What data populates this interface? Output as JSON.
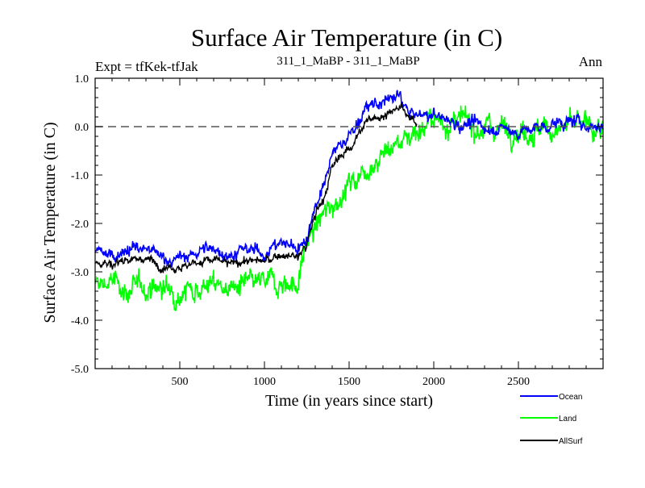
{
  "chart_data": {
    "type": "line",
    "title": "Surface Air Temperature (in C)",
    "subtitle_left": "Expt = tfKek-tfJak",
    "subtitle_center": "311_1_MaBP - 311_1_MaBP",
    "subtitle_right": "Ann",
    "xlabel": "Time (in years since start)",
    "ylabel": "Surface Air Temperature (in C)",
    "xlim": [
      0,
      3000
    ],
    "ylim": [
      -5.0,
      1.0
    ],
    "xticks": [
      500,
      1000,
      1500,
      2000,
      2500
    ],
    "xtick_labels": [
      "500",
      "1000",
      "1500",
      "2000",
      "2500"
    ],
    "yticks": [
      1.0,
      0.0,
      -1.0,
      -2.0,
      -3.0,
      -4.0,
      -5.0
    ],
    "ytick_labels": [
      "1.0",
      "0.0",
      "-1.0",
      "-2.0",
      "-3.0",
      "-4.0",
      "-5.0"
    ],
    "reference_line": {
      "y": 0.0,
      "style": "dashed"
    },
    "grid": false,
    "legend_position": "bottom-right",
    "series": [
      {
        "name": "Ocean",
        "color": "#0000ff",
        "x": [
          0,
          100,
          200,
          300,
          400,
          500,
          600,
          700,
          800,
          900,
          1000,
          1100,
          1200,
          1250,
          1300,
          1350,
          1400,
          1450,
          1500,
          1550,
          1600,
          1650,
          1700,
          1750,
          1800,
          1850,
          1900,
          2000,
          2100,
          2200,
          2300,
          2400,
          2500,
          2600,
          2700,
          2800,
          2900,
          3000
        ],
        "y": [
          -2.6,
          -2.65,
          -2.5,
          -2.55,
          -2.7,
          -2.75,
          -2.6,
          -2.5,
          -2.65,
          -2.55,
          -2.6,
          -2.4,
          -2.5,
          -2.3,
          -1.6,
          -1.3,
          -0.6,
          -0.35,
          -0.2,
          0.1,
          0.35,
          0.45,
          0.5,
          0.55,
          0.65,
          0.3,
          0.2,
          0.25,
          0.1,
          0.05,
          0.0,
          -0.05,
          -0.1,
          -0.05,
          0.05,
          0.1,
          0.05,
          0.0
        ],
        "noise": 0.17
      },
      {
        "name": "Land",
        "color": "#00ff00",
        "x": [
          0,
          100,
          200,
          300,
          400,
          500,
          600,
          700,
          800,
          900,
          1000,
          1100,
          1200,
          1230,
          1260,
          1300,
          1400,
          1500,
          1600,
          1700,
          1800,
          1900,
          2000,
          2100,
          2200,
          2300,
          2400,
          2500,
          2600,
          2700,
          2800,
          2900,
          3000
        ],
        "y": [
          -3.3,
          -3.2,
          -3.4,
          -3.3,
          -3.35,
          -3.4,
          -3.3,
          -3.25,
          -3.35,
          -3.3,
          -3.25,
          -3.2,
          -3.25,
          -2.7,
          -2.3,
          -2.1,
          -1.6,
          -1.2,
          -0.85,
          -0.55,
          -0.3,
          -0.05,
          0.1,
          0.1,
          0.05,
          0.0,
          0.0,
          -0.05,
          -0.1,
          -0.05,
          0.0,
          0.0,
          -0.1
        ],
        "noise": 0.3
      },
      {
        "name": "AllSurf",
        "color": "#000000",
        "x": [
          0,
          100,
          200,
          300,
          400,
          500,
          600,
          700,
          800,
          900,
          1000,
          1100,
          1200,
          1250,
          1300,
          1350,
          1400,
          1450,
          1500,
          1550,
          1600,
          1650,
          1700,
          1750,
          1800,
          1850,
          1900
        ],
        "y": [
          -2.8,
          -2.85,
          -2.7,
          -2.75,
          -2.85,
          -2.9,
          -2.8,
          -2.75,
          -2.85,
          -2.75,
          -2.8,
          -2.65,
          -2.7,
          -2.45,
          -1.8,
          -1.5,
          -0.85,
          -0.6,
          -0.45,
          -0.15,
          0.05,
          0.2,
          0.25,
          0.3,
          0.4,
          0.15,
          0.1
        ],
        "noise": 0.12
      }
    ]
  }
}
